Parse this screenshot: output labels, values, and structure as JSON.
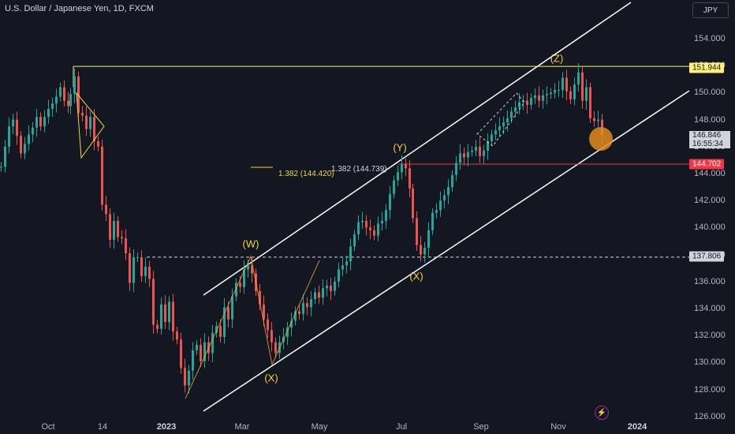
{
  "header": {
    "title": "U.S. Dollar / Japanese Yen, 1D, FXCM"
  },
  "currency_button": "JPY",
  "y_axis": {
    "ticks": [
      "154.000",
      "152.000",
      "150.000",
      "148.000",
      "146.000",
      "144.000",
      "142.000",
      "140.000",
      "138.000",
      "136.000",
      "134.000",
      "132.000",
      "130.000",
      "128.000",
      "126.000"
    ]
  },
  "x_axis": {
    "ticks": [
      "Oct",
      "14",
      "2023",
      "Mar",
      "May",
      "Jul",
      "Sep",
      "Nov",
      "2024"
    ]
  },
  "price_labels": {
    "resistance": "151.944",
    "current_price": "146.846",
    "countdown": "16:55:34",
    "fib_level": "144.702",
    "support": "137.806"
  },
  "wave_labels": [
    "(W)",
    "(X)",
    "(Y)",
    "(X)",
    "(Z)"
  ],
  "fib_annotations": {
    "left": "1.382 (144.420)",
    "right": "1.382 (144.739)"
  },
  "colors": {
    "background": "#131722",
    "up_candle": "#26a69a",
    "down_candle": "#ef5350",
    "resistance": "#fff176",
    "fib_line": "#f23645",
    "channel": "#ffffff",
    "wave_label": "#f5d142",
    "target_circle": "#e08a1e"
  },
  "icons": {
    "flash": "lightning-icon"
  },
  "chart_data": {
    "type": "candlestick",
    "series": [
      {
        "name": "USDJPY",
        "values": [
          [
            0,
            144.5
          ],
          [
            5,
            146.0
          ],
          [
            10,
            147.5
          ],
          [
            15,
            148.0
          ],
          [
            20,
            146.8
          ],
          [
            25,
            145.5
          ],
          [
            30,
            146.2
          ],
          [
            35,
            146.9
          ],
          [
            40,
            147.4
          ],
          [
            45,
            148.2
          ],
          [
            50,
            147.5
          ],
          [
            55,
            148.2
          ],
          [
            60,
            148.8
          ],
          [
            65,
            149.2
          ],
          [
            70,
            149.7
          ],
          [
            75,
            150.4
          ],
          [
            80,
            149.4
          ],
          [
            85,
            149.0
          ],
          [
            88,
            149.9
          ],
          [
            93,
            151.2
          ],
          [
            98,
            148.5
          ],
          [
            103,
            148.3
          ],
          [
            108,
            147.3
          ],
          [
            113,
            148.2
          ],
          [
            118,
            146.4
          ],
          [
            123,
            146.0
          ],
          [
            128,
            141.7
          ],
          [
            133,
            141.0
          ],
          [
            138,
            139.1
          ],
          [
            143,
            140.5
          ],
          [
            148,
            139.3
          ],
          [
            153,
            139.2
          ],
          [
            158,
            138.1
          ],
          [
            163,
            135.9
          ],
          [
            168,
            137.8
          ],
          [
            173,
            137.8
          ],
          [
            178,
            136.4
          ],
          [
            183,
            137.1
          ],
          [
            188,
            136.2
          ],
          [
            193,
            132.8
          ],
          [
            198,
            132.5
          ],
          [
            203,
            134.3
          ],
          [
            208,
            133.0
          ],
          [
            213,
            134.5
          ],
          [
            218,
            132.3
          ],
          [
            223,
            131.7
          ],
          [
            228,
            129.6
          ],
          [
            233,
            128.3
          ],
          [
            238,
            129.4
          ],
          [
            243,
            130.9
          ],
          [
            248,
            131.3
          ],
          [
            253,
            130.1
          ],
          [
            258,
            131.5
          ],
          [
            263,
            130.7
          ],
          [
            268,
            132.2
          ],
          [
            273,
            132.7
          ],
          [
            278,
            131.9
          ],
          [
            283,
            134.1
          ],
          [
            288,
            133.2
          ],
          [
            293,
            134.9
          ],
          [
            298,
            135.9
          ],
          [
            303,
            135.6
          ],
          [
            308,
            136.9
          ],
          [
            313,
            137.2
          ],
          [
            318,
            136.6
          ],
          [
            323,
            135.3
          ],
          [
            328,
            134.3
          ],
          [
            333,
            133.2
          ],
          [
            338,
            132.4
          ],
          [
            343,
            131.5
          ],
          [
            348,
            130.7
          ],
          [
            353,
            131.5
          ],
          [
            358,
            131.9
          ],
          [
            363,
            132.6
          ],
          [
            368,
            133.1
          ],
          [
            373,
            133.8
          ],
          [
            378,
            133.6
          ],
          [
            383,
            134.4
          ],
          [
            388,
            134.1
          ],
          [
            393,
            134.7
          ],
          [
            398,
            135.2
          ],
          [
            403,
            134.8
          ],
          [
            408,
            135.5
          ],
          [
            413,
            135.7
          ],
          [
            418,
            135.3
          ],
          [
            423,
            136.0
          ],
          [
            428,
            136.9
          ],
          [
            433,
            137.2
          ],
          [
            438,
            137.5
          ],
          [
            443,
            138.6
          ],
          [
            448,
            139.5
          ],
          [
            453,
            140.4
          ],
          [
            458,
            140.5
          ],
          [
            463,
            140.0
          ],
          [
            468,
            139.8
          ],
          [
            473,
            139.4
          ],
          [
            478,
            140.3
          ],
          [
            483,
            140.5
          ],
          [
            488,
            141.3
          ],
          [
            493,
            142.5
          ],
          [
            498,
            143.5
          ],
          [
            503,
            144.1
          ],
          [
            508,
            144.7
          ],
          [
            513,
            144.4
          ],
          [
            518,
            142.9
          ],
          [
            522,
            140.7
          ],
          [
            527,
            138.7
          ],
          [
            532,
            138.0
          ],
          [
            537,
            138.5
          ],
          [
            542,
            139.8
          ],
          [
            547,
            141.1
          ],
          [
            552,
            141.3
          ],
          [
            557,
            142.0
          ],
          [
            562,
            142.4
          ],
          [
            567,
            143.0
          ],
          [
            572,
            143.9
          ],
          [
            577,
            144.8
          ],
          [
            582,
            145.5
          ],
          [
            587,
            145.2
          ],
          [
            592,
            145.6
          ],
          [
            597,
            145.7
          ],
          [
            602,
            146.0
          ],
          [
            607,
            145.3
          ],
          [
            612,
            145.7
          ],
          [
            617,
            146.4
          ],
          [
            622,
            146.9
          ],
          [
            627,
            147.2
          ],
          [
            632,
            147.5
          ],
          [
            637,
            147.8
          ],
          [
            642,
            148.1
          ],
          [
            647,
            148.6
          ],
          [
            652,
            148.9
          ],
          [
            657,
            149.3
          ],
          [
            662,
            149.4
          ],
          [
            667,
            149.1
          ],
          [
            672,
            149.6
          ],
          [
            677,
            149.8
          ],
          [
            682,
            149.4
          ],
          [
            687,
            149.8
          ],
          [
            692,
            149.9
          ],
          [
            697,
            150.0
          ],
          [
            702,
            150.2
          ],
          [
            707,
            150.2
          ],
          [
            712,
            151.1
          ],
          [
            717,
            150.1
          ],
          [
            722,
            149.5
          ],
          [
            727,
            150.6
          ],
          [
            732,
            151.5
          ],
          [
            737,
            149.4
          ],
          [
            742,
            150.4
          ],
          [
            747,
            148.1
          ],
          [
            752,
            147.9
          ],
          [
            757,
            148.0
          ],
          [
            762,
            146.8
          ]
        ]
      }
    ],
    "resistance_level": 151.944,
    "support_level": 137.806,
    "fib_target_level": 144.702,
    "ylim": [
      126,
      155
    ]
  }
}
